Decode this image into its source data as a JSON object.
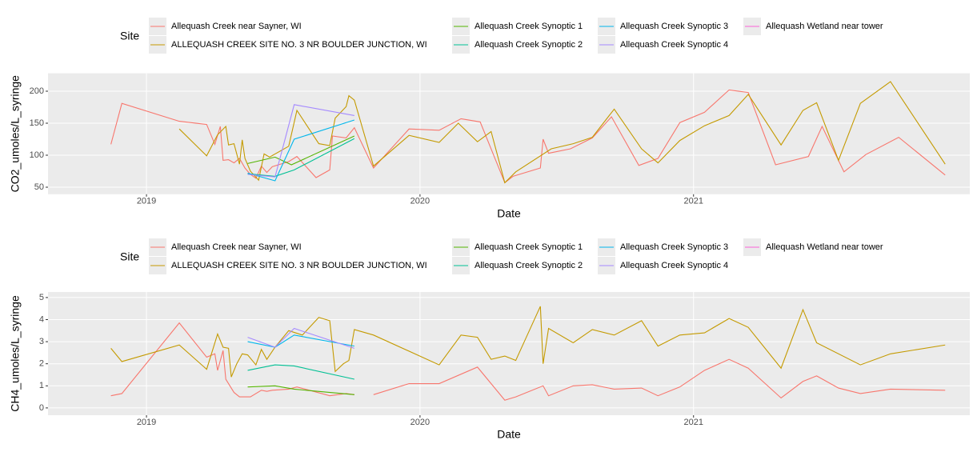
{
  "chart_data": [
    {
      "type": "line",
      "x_label": "Date",
      "y_label": "CO2_umoles/L_syringe",
      "legend_title": "Site",
      "xlim": [
        2018.64,
        2022.01
      ],
      "xticks": [
        2019,
        2020,
        2021
      ],
      "ylim": [
        39,
        228
      ],
      "yticks": [
        50,
        100,
        150,
        200
      ],
      "grid": true,
      "series": [
        {
          "name": "Allequash Creek near Sayner, WI",
          "color": "#F8766D",
          "x": [
            2018.87,
            2018.91,
            2019.12,
            2019.22,
            2019.25,
            2019.27,
            2019.28,
            2019.3,
            2019.32,
            2019.34,
            2019.36,
            2019.38,
            2019.4,
            2019.42,
            2019.44,
            2019.46,
            2019.52,
            2019.55,
            2019.62,
            2019.67,
            2019.68,
            2019.73,
            2019.76,
            2019.83,
            2019.96,
            2020.07,
            2020.15,
            2020.22,
            2020.31,
            2020.34,
            2020.44,
            2020.45,
            2020.47,
            2020.55,
            2020.63,
            2020.7,
            2020.8,
            2020.87,
            2020.95,
            2021.04,
            2021.13,
            2021.2,
            2021.3,
            2021.42,
            2021.47,
            2021.55,
            2021.63,
            2021.75,
            2021.92
          ],
          "values": [
            117,
            181,
            153,
            148,
            117,
            145,
            92,
            93,
            88,
            95,
            80,
            70,
            64,
            83,
            73,
            82,
            90,
            98,
            65,
            77,
            130,
            127,
            143,
            80,
            141,
            139,
            157,
            152,
            57,
            67,
            80,
            125,
            103,
            110,
            127,
            160,
            84,
            95,
            151,
            167,
            202,
            198,
            85,
            98,
            145,
            74,
            101,
            128,
            69
          ]
        },
        {
          "name": "ALLEQUASH CREEK SITE NO. 3 NR BOULDER JUNCTION, WI",
          "color": "#C49A00",
          "x": [
            2019.12,
            2019.22,
            2019.26,
            2019.29,
            2019.3,
            2019.32,
            2019.34,
            2019.35,
            2019.36,
            2019.38,
            2019.41,
            2019.43,
            2019.45,
            2019.52,
            2019.55,
            2019.63,
            2019.67,
            2019.69,
            2019.73,
            2019.74,
            2019.76,
            2019.83,
            2019.96,
            2020.07,
            2020.14,
            2020.21,
            2020.26,
            2020.31,
            2020.35,
            2020.48,
            2020.56,
            2020.63,
            2020.71,
            2020.81,
            2020.87,
            2020.95,
            2021.04,
            2021.13,
            2021.2,
            2021.32,
            2021.4,
            2021.45,
            2021.53,
            2021.61,
            2021.72,
            2021.92
          ],
          "values": [
            141,
            99,
            132,
            145,
            116,
            118,
            86,
            124,
            95,
            75,
            61,
            102,
            97,
            114,
            170,
            118,
            115,
            158,
            176,
            193,
            186,
            83,
            131,
            120,
            150,
            121,
            137,
            57,
            74,
            110,
            118,
            128,
            172,
            110,
            88,
            123,
            146,
            162,
            195,
            116,
            170,
            182,
            92,
            181,
            215,
            86
          ]
        },
        {
          "name": "Allequash Creek Synoptic 1",
          "color": "#53B400",
          "x": [
            2019.37,
            2019.47,
            2019.53,
            2019.76
          ],
          "values": [
            87,
            97,
            85,
            130
          ]
        },
        {
          "name": "Allequash Creek Synoptic 2",
          "color": "#00C094",
          "x": [
            2019.37,
            2019.47,
            2019.54,
            2019.76
          ],
          "values": [
            71,
            67,
            77,
            126
          ]
        },
        {
          "name": "Allequash Creek Synoptic 3",
          "color": "#00B6EB",
          "x": [
            2019.37,
            2019.47,
            2019.54,
            2019.76
          ],
          "values": [
            72,
            60,
            125,
            155
          ]
        },
        {
          "name": "Allequash Creek Synoptic 4",
          "color": "#A58AFF",
          "x": [
            2019.37,
            2019.47,
            2019.54,
            2019.76
          ],
          "values": [
            70,
            66,
            179,
            162
          ]
        },
        {
          "name": "Allequash Wetland near tower",
          "color": "#FB61D7",
          "x": [],
          "values": []
        }
      ]
    },
    {
      "type": "line",
      "x_label": "Date",
      "y_label": "CH4_umoles/L_syringe",
      "legend_title": "Site",
      "xlim": [
        2018.64,
        2022.01
      ],
      "xticks": [
        2019,
        2020,
        2021
      ],
      "ylim": [
        -0.33,
        5.25
      ],
      "yticks": [
        0,
        1,
        2,
        3,
        4,
        5
      ],
      "grid": true,
      "series": [
        {
          "name": "Allequash Creek near Sayner, WI",
          "color": "#F8766D",
          "x": [
            2018.87,
            2018.91,
            2019.12,
            2019.22,
            2019.25,
            2019.26,
            2019.28,
            2019.29,
            2019.3,
            2019.32,
            2019.34,
            2019.36,
            2019.38,
            2019.42,
            2019.44,
            2019.46,
            2019.52,
            2019.55,
            2019.67,
            2019.73,
            2019.76,
            2019.8,
            2019.83,
            2019.96,
            2020.07,
            2020.21,
            2020.31,
            2020.35,
            2020.45,
            2020.47,
            2020.56,
            2020.63,
            2020.71,
            2020.81,
            2020.87,
            2020.95,
            2021.04,
            2021.13,
            2021.2,
            2021.32,
            2021.4,
            2021.45,
            2021.53,
            2021.61,
            2021.72,
            2021.92
          ],
          "values": [
            0.55,
            0.65,
            3.85,
            2.3,
            2.45,
            1.7,
            2.6,
            1.3,
            1.1,
            0.7,
            0.5,
            0.5,
            0.5,
            0.8,
            0.75,
            0.8,
            0.85,
            0.95,
            0.55,
            0.65,
            0.6,
            null,
            0.6,
            1.1,
            1.1,
            1.85,
            0.35,
            0.5,
            1.0,
            0.55,
            1.0,
            1.05,
            0.85,
            0.9,
            0.55,
            0.95,
            1.7,
            2.2,
            1.8,
            0.45,
            1.2,
            1.45,
            0.9,
            0.65,
            0.85,
            0.8
          ]
        },
        {
          "name": "ALLEQUASH CREEK SITE NO. 3 NR BOULDER JUNCTION, WI",
          "color": "#C49A00",
          "x": [
            2018.87,
            2018.91,
            2019.12,
            2019.22,
            2019.26,
            2019.28,
            2019.3,
            2019.31,
            2019.33,
            2019.35,
            2019.37,
            2019.4,
            2019.42,
            2019.44,
            2019.47,
            2019.52,
            2019.57,
            2019.63,
            2019.67,
            2019.69,
            2019.72,
            2019.74,
            2019.76,
            2019.83,
            2020.07,
            2020.15,
            2020.21,
            2020.26,
            2020.31,
            2020.35,
            2020.44,
            2020.45,
            2020.47,
            2020.56,
            2020.63,
            2020.71,
            2020.81,
            2020.87,
            2020.95,
            2021.04,
            2021.13,
            2021.2,
            2021.32,
            2021.4,
            2021.45,
            2021.61,
            2021.72,
            2021.92
          ],
          "values": [
            2.7,
            2.1,
            2.85,
            1.75,
            3.35,
            2.75,
            2.7,
            1.4,
            2.0,
            2.45,
            2.4,
            1.95,
            2.65,
            2.2,
            2.75,
            3.5,
            3.3,
            4.1,
            3.95,
            1.65,
            2.0,
            2.15,
            3.55,
            3.3,
            1.95,
            3.3,
            3.2,
            2.2,
            2.35,
            2.15,
            4.6,
            2.0,
            3.6,
            2.95,
            3.55,
            3.3,
            3.95,
            2.8,
            3.3,
            3.4,
            4.05,
            3.65,
            1.8,
            4.45,
            2.95,
            1.95,
            2.45,
            2.85
          ]
        },
        {
          "name": "Allequash Creek Synoptic 1",
          "color": "#53B400",
          "x": [
            2019.37,
            2019.47,
            2019.54,
            2019.76
          ],
          "values": [
            0.95,
            1.0,
            0.85,
            0.6
          ]
        },
        {
          "name": "Allequash Creek Synoptic 2",
          "color": "#00C094",
          "x": [
            2019.37,
            2019.47,
            2019.54,
            2019.76
          ],
          "values": [
            1.7,
            1.95,
            1.9,
            1.3
          ]
        },
        {
          "name": "Allequash Creek Synoptic 3",
          "color": "#00B6EB",
          "x": [
            2019.37,
            2019.47,
            2019.54,
            2019.76
          ],
          "values": [
            3.0,
            2.75,
            3.3,
            2.8
          ]
        },
        {
          "name": "Allequash Creek Synoptic 4",
          "color": "#A58AFF",
          "x": [
            2019.37,
            2019.47,
            2019.54,
            2019.76
          ],
          "values": [
            3.2,
            2.75,
            3.6,
            2.7
          ]
        },
        {
          "name": "Allequash Wetland near tower",
          "color": "#FB61D7",
          "x": [],
          "values": []
        }
      ]
    }
  ]
}
